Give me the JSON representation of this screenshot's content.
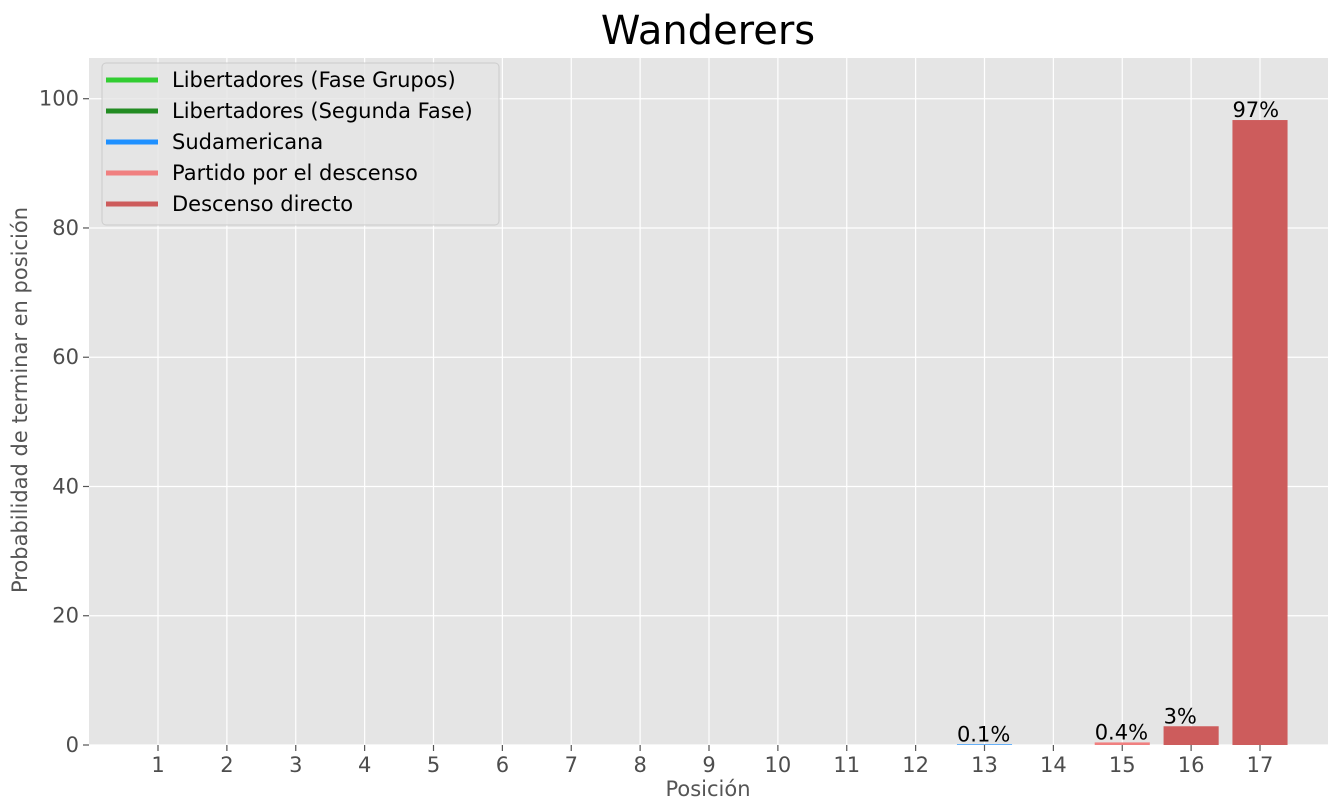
{
  "chart_data": {
    "type": "bar",
    "title": "Wanderers",
    "xlabel": "Posición",
    "ylabel": "Probabilidad de terminar en posición",
    "categories": [
      "1",
      "2",
      "3",
      "4",
      "5",
      "6",
      "7",
      "8",
      "9",
      "10",
      "11",
      "12",
      "13",
      "14",
      "15",
      "16",
      "17"
    ],
    "values": [
      0,
      0,
      0,
      0,
      0,
      0,
      0,
      0,
      0,
      0,
      0,
      0,
      0.1,
      0,
      0.4,
      2.9,
      96.7
    ],
    "data_labels": [
      "",
      "",
      "",
      "",
      "",
      "",
      "",
      "",
      "",
      "",
      "",
      "",
      "0.1%",
      "",
      "0.4%",
      "3%",
      "97%"
    ],
    "bar_colors": [
      "#32cd32",
      "#32cd32",
      "#228b22",
      "#228b22",
      "#1e90ff",
      "#1e90ff",
      "#1e90ff",
      "#1e90ff",
      "#1e90ff",
      "#1e90ff",
      "#1e90ff",
      "#1e90ff",
      "#1e90ff",
      "#1e90ff",
      "#f08080",
      "#cd5c5c",
      "#cd5c5c"
    ],
    "ylim": [
      0,
      106.3
    ],
    "yticks": [
      0,
      20,
      40,
      60,
      80,
      100
    ],
    "grid": true,
    "legend_placement": "top-left",
    "legend": [
      {
        "label": "Libertadores (Fase Grupos)",
        "color": "#32cd32"
      },
      {
        "label": "Libertadores (Segunda Fase)",
        "color": "#228b22"
      },
      {
        "label": "Sudamericana",
        "color": "#1e90ff"
      },
      {
        "label": "Partido por el descenso",
        "color": "#f08080"
      },
      {
        "label": "Descenso directo",
        "color": "#cd5c5c"
      }
    ],
    "background_color": "#e5e5e5",
    "grid_color": "#ffffff"
  }
}
